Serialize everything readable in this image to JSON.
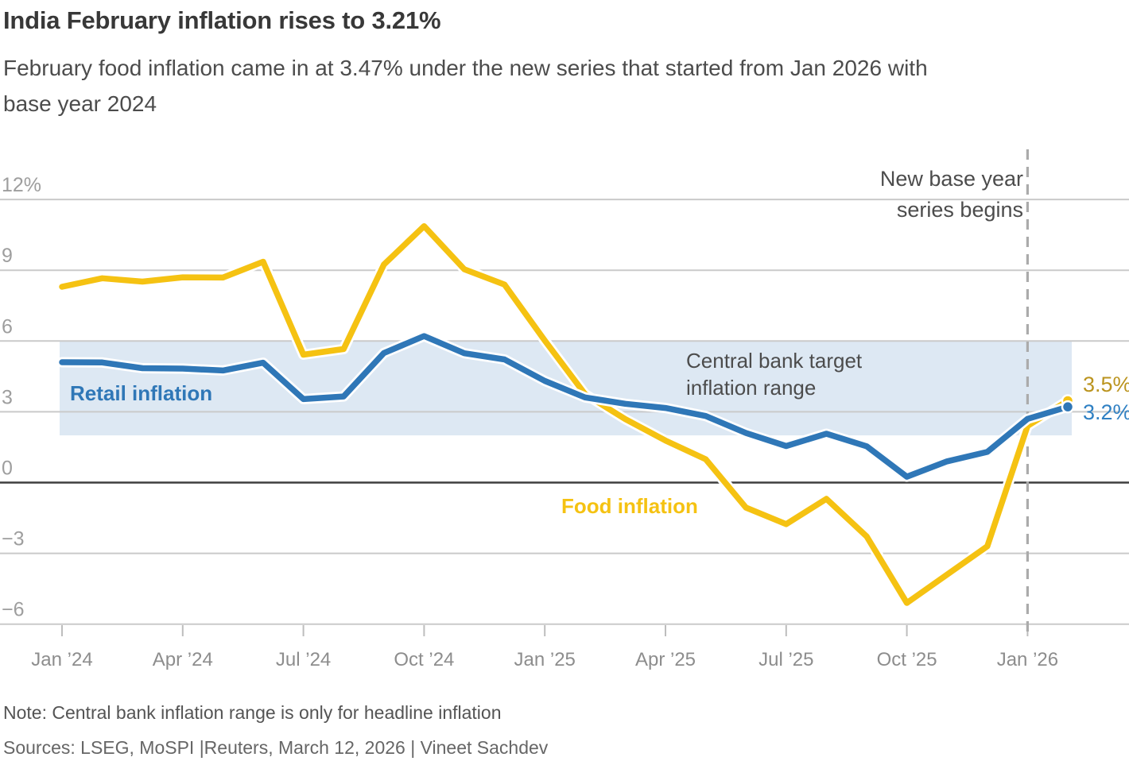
{
  "header": {
    "title": "India February inflation rises to 3.21%",
    "subtitle_line1": "February food inflation came in at 3.47% under the new series that started from Jan 2026 with",
    "subtitle_line2": "base year 2024"
  },
  "footer": {
    "note": "Note: Central bank inflation range is only for headline inflation",
    "sources": "Sources: LSEG, MoSPI |Reuters, March 12, 2026 | Vineet Sachdev"
  },
  "chart_data": {
    "type": "line",
    "title": "India February inflation rises to 3.21%",
    "unit": "%",
    "grid": "horizontal",
    "ylim": [
      -7.5,
      13
    ],
    "x_tick_labels": [
      "Jan ’24",
      "Apr ’24",
      "Jul ’24",
      "Oct ’24",
      "Jan ’25",
      "Apr ’25",
      "Jul ’25",
      "Oct ’25",
      "Jan ’26"
    ],
    "y_tick_labels": [
      "12%",
      "9",
      "6",
      "3",
      "0",
      "−3",
      "−6"
    ],
    "y_tick_values": [
      12,
      9,
      6,
      3,
      0,
      -3,
      -6
    ],
    "months": [
      "2024-01",
      "2024-02",
      "2024-03",
      "2024-04",
      "2024-05",
      "2024-06",
      "2024-07",
      "2024-08",
      "2024-09",
      "2024-10",
      "2024-11",
      "2024-12",
      "2025-01",
      "2025-02",
      "2025-03",
      "2025-04",
      "2025-05",
      "2025-06",
      "2025-07",
      "2025-08",
      "2025-09",
      "2025-10",
      "2025-11",
      "2025-12",
      "2026-01",
      "2026-02"
    ],
    "series": [
      {
        "name": "Food inflation",
        "color": "#f5c212",
        "end_label": "3.5%",
        "end_label_color": "#bb941f",
        "values": [
          8.3,
          8.66,
          8.52,
          8.7,
          8.69,
          9.36,
          5.42,
          5.66,
          9.24,
          10.87,
          9.04,
          8.39,
          6.02,
          3.75,
          2.69,
          1.78,
          0.99,
          -1.06,
          -1.76,
          -0.69,
          -2.28,
          -5.1,
          -3.9,
          -2.7,
          2.4,
          3.47
        ]
      },
      {
        "name": "Retail inflation",
        "color": "#2f77b7",
        "end_label": "3.2%",
        "end_label_color": "#2f80c3",
        "values": [
          5.1,
          5.09,
          4.85,
          4.83,
          4.75,
          5.08,
          3.54,
          3.65,
          5.49,
          6.21,
          5.48,
          5.22,
          4.31,
          3.61,
          3.34,
          3.16,
          2.82,
          2.1,
          1.55,
          2.07,
          1.54,
          0.25,
          0.9,
          1.3,
          2.7,
          3.21
        ]
      }
    ],
    "target_band": {
      "label_line1": "Central bank target",
      "label_line2": "inflation range",
      "from": 2,
      "to": 6,
      "color": "#dde8f3"
    },
    "annotation": {
      "line1": "New base year",
      "line2": "series begins",
      "at": "2026-01"
    }
  }
}
